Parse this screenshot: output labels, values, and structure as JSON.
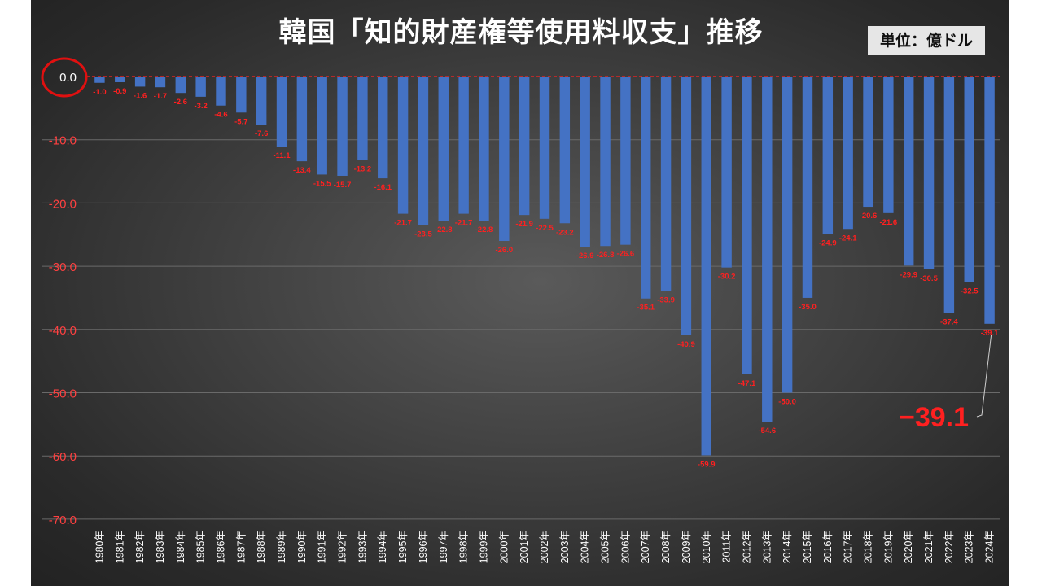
{
  "title": "韓国「知的財産権等使用料収支」推移",
  "unit": "単位：億ドル",
  "callout": "−39.1",
  "colors": {
    "bar": "#4472c4",
    "label": "#ff2020",
    "axis_text": "#ff4040",
    "zero_line": "#ff2020"
  },
  "chart_data": {
    "type": "bar",
    "title": "韓国「知的財産権等使用料収支」推移",
    "xlabel": "",
    "ylabel": "",
    "ylim": [
      -70,
      0
    ],
    "yticks": [
      0,
      -10,
      -20,
      -30,
      -40,
      -50,
      -60,
      -70
    ],
    "ytick_labels": [
      "0.0",
      "-10.0",
      "-20.0",
      "-30.0",
      "-40.0",
      "-50.0",
      "-60.0",
      "-70.0"
    ],
    "grid": true,
    "categories": [
      "1980年",
      "1981年",
      "1982年",
      "1983年",
      "1984年",
      "1985年",
      "1986年",
      "1987年",
      "1988年",
      "1989年",
      "1990年",
      "1991年",
      "1992年",
      "1993年",
      "1994年",
      "1995年",
      "1996年",
      "1997年",
      "1998年",
      "1999年",
      "2000年",
      "2001年",
      "2002年",
      "2003年",
      "2004年",
      "2005年",
      "2006年",
      "2007年",
      "2008年",
      "2009年",
      "2010年",
      "2011年",
      "2012年",
      "2013年",
      "2014年",
      "2015年",
      "2016年",
      "2017年",
      "2018年",
      "2019年",
      "2020年",
      "2021年",
      "2022年",
      "2023年",
      "2024年"
    ],
    "values": [
      -1.0,
      -0.9,
      -1.6,
      -1.7,
      -2.6,
      -3.2,
      -4.6,
      -5.7,
      -7.6,
      -11.1,
      -13.4,
      -15.5,
      -15.7,
      -13.2,
      -16.1,
      -21.7,
      -23.5,
      -22.8,
      -21.7,
      -22.8,
      -26.0,
      -21.9,
      -22.5,
      -23.2,
      -26.9,
      -26.8,
      -26.6,
      -35.1,
      -33.9,
      -40.9,
      -59.9,
      -30.2,
      -47.1,
      -54.6,
      -50.0,
      -35.0,
      -24.9,
      -24.1,
      -20.6,
      -21.6,
      -29.9,
      -30.5,
      -37.4,
      -32.5,
      -39.1
    ],
    "data_labels": [
      "-1.0",
      "-0.9",
      "-1.6",
      "-1.7",
      "-2.6",
      "-3.2",
      "-4.6",
      "-5.7",
      "-7.6",
      "-11.1",
      "-13.4",
      "-15.5",
      "-15.7",
      "-13.2",
      "-16.1",
      "-21.7",
      "-23.5",
      "-22.8",
      "-21.7",
      "-22.8",
      "-26.0",
      "-21.9",
      "-22.5",
      "-23.2",
      "-26.9",
      "-26.8",
      "-26.6",
      "-35.1",
      "-33.9",
      "-40.9",
      "-59.9",
      "-30.2",
      "-47.1",
      "-54.6",
      "-50.0",
      "-35.0",
      "-24.9",
      "-24.1",
      "-20.6",
      "-21.6",
      "-29.9",
      "-30.5",
      "-37.4",
      "-32.5",
      "-39.1"
    ]
  }
}
